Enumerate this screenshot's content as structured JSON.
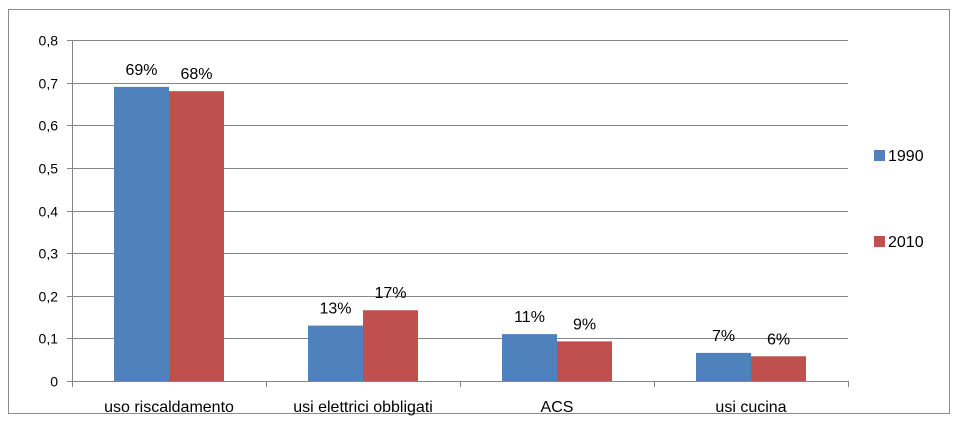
{
  "chart_data": {
    "type": "bar",
    "categories": [
      "uso riscaldamento",
      "usi elettrici obbligati",
      "ACS",
      "usi cucina"
    ],
    "series": [
      {
        "name": "1990",
        "values": [
          0.69,
          0.13,
          0.11,
          0.066
        ],
        "labels": [
          "69%",
          "13%",
          "11%",
          "7%"
        ],
        "color": "#4F81BD"
      },
      {
        "name": "2010",
        "values": [
          0.68,
          0.166,
          0.093,
          0.058
        ],
        "labels": [
          "68%",
          "17%",
          "9%",
          "6%"
        ],
        "color": "#C0504D"
      }
    ],
    "ylim": [
      0,
      0.8
    ],
    "yticks": [
      0,
      0.1,
      0.2,
      0.3,
      0.4,
      0.5,
      0.6,
      0.7,
      0.8
    ],
    "ytick_labels": [
      "0",
      "0,1",
      "0,2",
      "0,3",
      "0,4",
      "0,5",
      "0,6",
      "0,7",
      "0,8"
    ],
    "grid": true,
    "legend_position": "right",
    "title": "",
    "xlabel": "",
    "ylabel": ""
  }
}
